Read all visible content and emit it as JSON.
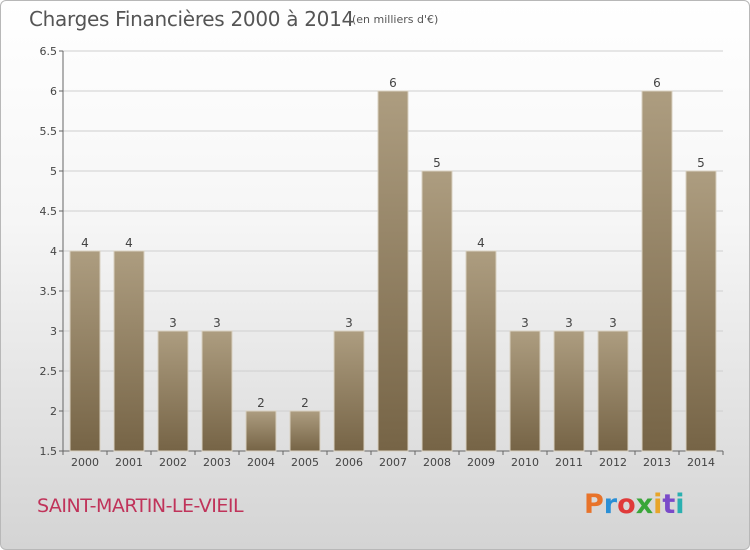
{
  "header": {
    "title": "Charges Financières 2000 à 2014",
    "unit": "(en milliers d'€)"
  },
  "footer": {
    "city": "SAINT-MARTIN-LE-VIEIL",
    "logo": "Proxiti",
    "logo_colors": [
      "#e8732a",
      "#2a8fd6",
      "#e03a3a",
      "#3aa63a",
      "#e8a52a",
      "#7a4ac9",
      "#2ab0b0"
    ]
  },
  "colors": {
    "bar_light": "#ad9d80",
    "bar_dark": "#766446",
    "grid": "#cfcfcf"
  },
  "chart_data": {
    "type": "bar",
    "categories": [
      "2000",
      "2001",
      "2002",
      "2003",
      "2004",
      "2005",
      "2006",
      "2007",
      "2008",
      "2009",
      "2010",
      "2011",
      "2012",
      "2013",
      "2014"
    ],
    "values": [
      4,
      4,
      3,
      3,
      2,
      2,
      3,
      6,
      5,
      4,
      3,
      3,
      3,
      6,
      5
    ],
    "value_labels": [
      "4",
      "4",
      "3",
      "3",
      "2",
      "2",
      "3",
      "6",
      "5",
      "4",
      "3",
      "3",
      "3",
      "6",
      "5"
    ],
    "ylim": [
      1.5,
      6.5
    ],
    "yticks": [
      "1.5",
      "2",
      "2.5",
      "3",
      "3.5",
      "4",
      "4.5",
      "5",
      "5.5",
      "6",
      "6.5"
    ],
    "grid": true,
    "legend": "none"
  }
}
